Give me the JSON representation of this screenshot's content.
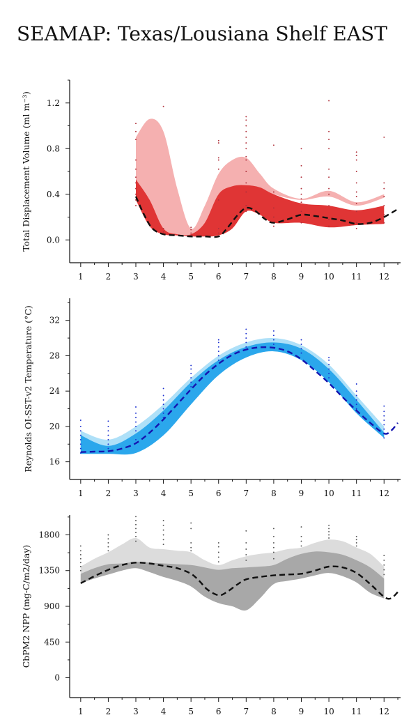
{
  "page": {
    "title": "SEAMAP: Texas/Lousiana Shelf EAST"
  },
  "chart_data": [
    {
      "type": "area",
      "ylabel": "Total Displacement Volume (ml m⁻³)",
      "x_ticks": [
        "1",
        "2",
        "3",
        "4",
        "5",
        "6",
        "7",
        "8",
        "9",
        "10",
        "11",
        "12"
      ],
      "y_ticks": [
        "0.0",
        "0.4",
        "0.8",
        "1.2"
      ],
      "xlim": [
        0.6,
        12.6
      ],
      "ylim": [
        -0.2,
        1.4
      ],
      "colors": {
        "outer": "#f5b0b0",
        "inner": "#e03535",
        "line": "#111111",
        "dots": "#b0303a"
      },
      "outer_band": {
        "x": [
          3,
          3.5,
          4,
          4.5,
          5,
          5.5,
          6,
          6.5,
          7,
          7.5,
          8,
          9,
          10,
          11,
          12
        ],
        "upper": [
          0.9,
          1.06,
          0.95,
          0.45,
          0.1,
          0.3,
          0.58,
          0.7,
          0.72,
          0.58,
          0.45,
          0.36,
          0.43,
          0.33,
          0.4
        ],
        "lower": [
          0.4,
          0.12,
          0.05,
          0.04,
          0.04,
          0.12,
          0.28,
          0.4,
          0.45,
          0.45,
          0.4,
          0.35,
          0.38,
          0.3,
          0.37
        ]
      },
      "inner_band": {
        "x": [
          3,
          3.5,
          4,
          4.5,
          5,
          5.5,
          6,
          6.5,
          7,
          7.5,
          8,
          9,
          10,
          11,
          12
        ],
        "upper": [
          0.53,
          0.35,
          0.1,
          0.05,
          0.05,
          0.15,
          0.4,
          0.47,
          0.48,
          0.46,
          0.4,
          0.32,
          0.3,
          0.26,
          0.3
        ],
        "lower": [
          0.35,
          0.12,
          0.05,
          0.04,
          0.03,
          0.03,
          0.04,
          0.1,
          0.25,
          0.22,
          0.15,
          0.15,
          0.11,
          0.13,
          0.14
        ]
      },
      "series": [
        {
          "x": [
            3,
            3.3,
            3.6,
            4,
            4.5,
            5,
            5.5,
            6,
            6.3,
            6.7,
            7,
            7.3,
            7.7,
            8,
            8.5,
            9,
            9.5,
            10,
            10.5,
            11,
            11.5,
            12,
            12.5
          ],
          "values": [
            0.38,
            0.22,
            0.1,
            0.05,
            0.04,
            0.03,
            0.03,
            0.03,
            0.1,
            0.22,
            0.28,
            0.26,
            0.18,
            0.15,
            0.18,
            0.22,
            0.21,
            0.19,
            0.17,
            0.14,
            0.15,
            0.2,
            0.27
          ]
        }
      ],
      "observations": [
        {
          "x": 3,
          "values": [
            0.3,
            0.35,
            0.4,
            0.45,
            0.5,
            0.55,
            0.62,
            0.7,
            0.88,
            0.95,
            1.02
          ]
        },
        {
          "x": 4,
          "values": [
            0.05,
            0.07,
            0.1,
            1.17
          ]
        },
        {
          "x": 5,
          "values": [
            0.04,
            0.06,
            0.09,
            0.11
          ]
        },
        {
          "x": 6,
          "values": [
            0.06,
            0.1,
            0.35,
            0.62,
            0.7,
            0.72,
            0.85,
            0.87
          ]
        },
        {
          "x": 7,
          "values": [
            0.25,
            0.3,
            0.42,
            0.5,
            0.6,
            0.7,
            0.73,
            0.8,
            0.85,
            0.9,
            0.95,
            1.0,
            1.05,
            1.08
          ]
        },
        {
          "x": 8,
          "values": [
            0.12,
            0.2,
            0.28,
            0.42,
            0.83
          ]
        },
        {
          "x": 9,
          "values": [
            0.15,
            0.25,
            0.33,
            0.36,
            0.4,
            0.45,
            0.55,
            0.65,
            0.8
          ]
        },
        {
          "x": 10,
          "values": [
            0.12,
            0.18,
            0.3,
            0.4,
            0.45,
            0.55,
            0.62,
            0.8,
            0.88,
            0.95,
            1.22
          ]
        },
        {
          "x": 11,
          "values": [
            0.1,
            0.15,
            0.25,
            0.32,
            0.38,
            0.42,
            0.5,
            0.6,
            0.7,
            0.74,
            0.77
          ]
        },
        {
          "x": 12,
          "values": [
            0.15,
            0.22,
            0.3,
            0.38,
            0.45,
            0.5,
            0.9
          ]
        }
      ]
    },
    {
      "type": "area",
      "ylabel": "Reynolds OI-SST-v2 Temperature (°C)",
      "x_ticks": [
        "1",
        "2",
        "3",
        "4",
        "5",
        "6",
        "7",
        "8",
        "9",
        "10",
        "11",
        "12"
      ],
      "y_ticks": [
        "16",
        "20",
        "24",
        "28",
        "32"
      ],
      "xlim": [
        0.6,
        12.6
      ],
      "ylim": [
        14,
        34.5
      ],
      "colors": {
        "outer": "#aee0f8",
        "inner": "#2ba7ec",
        "line": "#1515b0",
        "dots": "#1a2fd0"
      },
      "outer_band": {
        "x": [
          1,
          2,
          3,
          4,
          5,
          6,
          7,
          8,
          9,
          10,
          11,
          12
        ],
        "upper": [
          19.5,
          18.5,
          20.0,
          22.5,
          25.5,
          28.0,
          29.5,
          30.0,
          29.2,
          27.0,
          23.5,
          20.0
        ],
        "lower": [
          17.0,
          17.0,
          17.5,
          20.0,
          23.0,
          26.0,
          28.0,
          28.5,
          27.8,
          25.5,
          22.0,
          18.8
        ]
      },
      "inner_band": {
        "x": [
          1,
          2,
          3,
          4,
          5,
          6,
          7,
          8,
          9,
          10,
          11,
          12
        ],
        "upper": [
          19.0,
          17.8,
          19.2,
          21.8,
          25.0,
          27.5,
          29.0,
          29.5,
          28.8,
          26.5,
          23.0,
          19.3
        ],
        "lower": [
          16.9,
          16.9,
          17.0,
          19.0,
          22.5,
          25.8,
          27.8,
          28.5,
          27.5,
          25.0,
          21.5,
          18.7
        ]
      },
      "series": [
        {
          "x": [
            1,
            1.5,
            2,
            2.5,
            3,
            3.5,
            4,
            4.5,
            5,
            5.5,
            6,
            6.5,
            7,
            7.5,
            8,
            8.5,
            9,
            9.5,
            10,
            10.5,
            11,
            11.5,
            12,
            12.25,
            12.5
          ],
          "values": [
            17.1,
            17.15,
            17.2,
            17.5,
            18.1,
            19.3,
            20.8,
            22.5,
            24.2,
            25.8,
            27.1,
            28.1,
            28.7,
            28.95,
            28.9,
            28.5,
            27.6,
            26.3,
            24.9,
            23.3,
            21.8,
            20.4,
            19.2,
            19.5,
            20.4
          ]
        }
      ],
      "observations": [
        {
          "x": 1,
          "values": [
            17.0,
            17.5,
            18.0,
            18.5,
            19.0,
            19.5,
            20.0,
            20.7
          ]
        },
        {
          "x": 2,
          "values": [
            17.5,
            18.0,
            18.5,
            19.0,
            19.5,
            20.0,
            20.6
          ]
        },
        {
          "x": 3,
          "values": [
            18.5,
            19.5,
            20.0,
            20.5,
            21.0,
            21.5,
            22.2
          ]
        },
        {
          "x": 4,
          "values": [
            21.0,
            21.5,
            22.0,
            22.5,
            23.0,
            23.5,
            24.3
          ]
        },
        {
          "x": 5,
          "values": [
            24.5,
            25.0,
            25.5,
            26.0,
            26.5,
            26.9
          ]
        },
        {
          "x": 6,
          "values": [
            27.5,
            28.0,
            28.5,
            29.0,
            29.5,
            29.8
          ]
        },
        {
          "x": 7,
          "values": [
            29.0,
            29.5,
            30.0,
            30.5,
            31.0
          ]
        },
        {
          "x": 8,
          "values": [
            29.3,
            29.8,
            30.3,
            30.8
          ]
        },
        {
          "x": 9,
          "values": [
            28.3,
            28.8,
            29.3,
            29.8
          ]
        },
        {
          "x": 10,
          "values": [
            25.5,
            26.0,
            26.5,
            27.0,
            27.5,
            27.8
          ]
        },
        {
          "x": 11,
          "values": [
            22.0,
            22.5,
            23.0,
            23.5,
            24.0,
            24.8
          ]
        },
        {
          "x": 12,
          "values": [
            18.7,
            19.2,
            19.7,
            20.2,
            20.7,
            21.2,
            21.7,
            22.3
          ]
        }
      ]
    },
    {
      "type": "area",
      "ylabel": "CbPM2 NPP (mg-C/m2/day)",
      "x_ticks": [
        "1",
        "2",
        "3",
        "4",
        "5",
        "6",
        "7",
        "8",
        "9",
        "10",
        "11",
        "12"
      ],
      "y_ticks": [
        "0",
        "450",
        "900",
        "1350",
        "1800"
      ],
      "xlim": [
        0.6,
        12.6
      ],
      "ylim": [
        -250,
        2050
      ],
      "colors": {
        "outer": "#dcdcdc",
        "inner": "#a8a8a8",
        "line": "#111111",
        "dots": "#555555"
      },
      "outer_band": {
        "x": [
          1,
          1.5,
          2,
          2.5,
          3,
          3.5,
          4,
          4.5,
          5,
          5.5,
          6,
          6.5,
          7,
          7.5,
          8,
          8.5,
          9,
          9.5,
          10,
          10.5,
          11,
          11.5,
          12
        ],
        "upper": [
          1400,
          1500,
          1580,
          1680,
          1760,
          1640,
          1620,
          1600,
          1580,
          1480,
          1420,
          1480,
          1530,
          1560,
          1580,
          1620,
          1640,
          1700,
          1740,
          1720,
          1640,
          1560,
          1400
        ],
        "lower": [
          1200,
          1300,
          1380,
          1420,
          1450,
          1420,
          1400,
          1380,
          1350,
          1250,
          1150,
          1130,
          1140,
          1200,
          1260,
          1280,
          1300,
          1350,
          1400,
          1380,
          1300,
          1150,
          1000
        ]
      },
      "inner_band": {
        "x": [
          1,
          1.5,
          2,
          2.5,
          3,
          3.5,
          4,
          4.5,
          5,
          5.5,
          6,
          6.5,
          7,
          7.5,
          8,
          8.5,
          9,
          9.5,
          10,
          10.5,
          11,
          11.5,
          12
        ],
        "upper": [
          1310,
          1380,
          1430,
          1440,
          1460,
          1450,
          1440,
          1430,
          1420,
          1390,
          1360,
          1380,
          1390,
          1400,
          1420,
          1500,
          1560,
          1590,
          1580,
          1550,
          1480,
          1390,
          1250
        ],
        "lower": [
          1190,
          1250,
          1300,
          1350,
          1380,
          1330,
          1270,
          1220,
          1150,
          1020,
          940,
          900,
          850,
          1000,
          1180,
          1220,
          1250,
          1290,
          1320,
          1280,
          1200,
          1070,
          1000
        ]
      },
      "series": [
        {
          "x": [
            1,
            1.5,
            2,
            2.5,
            3,
            3.5,
            4,
            4.5,
            5,
            5.3,
            5.6,
            6,
            6.3,
            6.7,
            7,
            7.5,
            8,
            8.5,
            9,
            9.5,
            10,
            10.5,
            11,
            11.5,
            12,
            12.25,
            12.5
          ],
          "values": [
            1190,
            1280,
            1360,
            1420,
            1450,
            1440,
            1410,
            1380,
            1310,
            1220,
            1110,
            1040,
            1080,
            1180,
            1240,
            1270,
            1290,
            1300,
            1310,
            1350,
            1400,
            1390,
            1320,
            1180,
            1020,
            1000,
            1080
          ]
        }
      ],
      "observations": [
        {
          "x": 1,
          "values": [
            1350,
            1400,
            1450,
            1500,
            1550,
            1600,
            1660
          ]
        },
        {
          "x": 2,
          "values": [
            1600,
            1650,
            1700,
            1750,
            1800
          ]
        },
        {
          "x": 3,
          "values": [
            1720,
            1780,
            1830,
            1880,
            1930,
            1980,
            2030
          ]
        },
        {
          "x": 4,
          "values": [
            1680,
            1740,
            1800,
            1860,
            1920,
            1980
          ]
        },
        {
          "x": 5,
          "values": [
            1600,
            1640,
            1700,
            1880,
            1950
          ]
        },
        {
          "x": 6,
          "values": [
            1460,
            1520,
            1580,
            1650,
            1700
          ]
        },
        {
          "x": 7,
          "values": [
            1480,
            1550,
            1620,
            1700,
            1850
          ]
        },
        {
          "x": 8,
          "values": [
            1500,
            1580,
            1640,
            1700,
            1780,
            1880
          ]
        },
        {
          "x": 9,
          "values": [
            1660,
            1720,
            1780,
            1900
          ]
        },
        {
          "x": 10,
          "values": [
            1760,
            1800,
            1840,
            1880,
            1920
          ]
        },
        {
          "x": 11,
          "values": [
            1660,
            1700,
            1740,
            1780
          ]
        },
        {
          "x": 12,
          "values": [
            1300,
            1360,
            1420,
            1480,
            1540
          ]
        }
      ]
    }
  ]
}
